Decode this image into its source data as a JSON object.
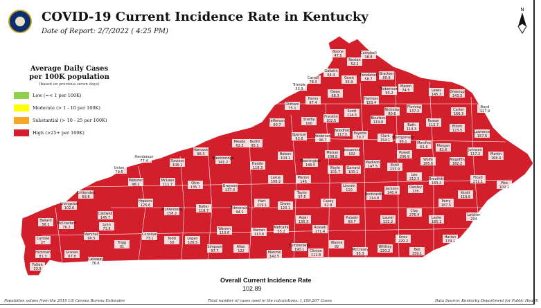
{
  "title": "COVID-19 Current Incidence Rate in Kentucky",
  "report_date": "Date of Report: 2/7/2022  ( 4:25 PM)",
  "legend": {
    "title_line1": "Average Daily Cases",
    "title_line2": "per 100K population",
    "note": "(based on previous seven days)",
    "items": [
      {
        "label": "Low (=< 1 per 100K)",
        "color": "#8fd14f"
      },
      {
        "label": "Moderate (> 1 - 10 per 100K)",
        "color": "#ffff00"
      },
      {
        "label": "Substantial (> 10 - 25 per 100K)",
        "color": "#f5a623"
      },
      {
        "label": "High (>25+ per 100K)",
        "color": "#d21f2b"
      }
    ]
  },
  "map_fill_color": "#d21f2b",
  "overall": {
    "label": "Overall Current Incidence Rate",
    "value": "102.89"
  },
  "footer": {
    "left": "Population values from the 2019 US Census Bureau Estimates",
    "center": "Total number of cases used in the calculations: 1,199,267 Cases",
    "right": "Data Source: Kentucky Department for Public Health"
  },
  "counties": [
    {
      "name": "Boone",
      "value": "47.5"
    },
    {
      "name": "Kenton",
      "value": "52.2"
    },
    {
      "name": "Campbell",
      "value": "38.8"
    },
    {
      "name": "Gallatin",
      "value": "64.4"
    },
    {
      "name": "Carroll",
      "value": "78.3"
    },
    {
      "name": "Trimble",
      "value": "53.9"
    },
    {
      "name": "Grant",
      "value": "35.9"
    },
    {
      "name": "Pendleton",
      "value": "58.7"
    },
    {
      "name": "Bracken",
      "value": "80.9"
    },
    {
      "name": "Robertson",
      "value": "95.2"
    },
    {
      "name": "Mason",
      "value": "74.5"
    },
    {
      "name": "Lewis",
      "value": "145.3"
    },
    {
      "name": "Greenup",
      "value": "143.3"
    },
    {
      "name": "Boyd",
      "value": "117.9"
    },
    {
      "name": "Oldham",
      "value": "75.1"
    },
    {
      "name": "Henry",
      "value": "97.4"
    },
    {
      "name": "Owen",
      "value": "68.3"
    },
    {
      "name": "Harrison",
      "value": "153.4"
    },
    {
      "name": "Fleming",
      "value": "137.2"
    },
    {
      "name": "Rowan",
      "value": "112.7"
    },
    {
      "name": "Carter",
      "value": "166.3"
    },
    {
      "name": "Elliott",
      "value": "123.5"
    },
    {
      "name": "Lawrence",
      "value": "157.6"
    },
    {
      "name": "Nicholas",
      "value": "80.6"
    },
    {
      "name": "Scott",
      "value": "114.5"
    },
    {
      "name": "Franklin",
      "value": "102.5"
    },
    {
      "name": "Shelby",
      "value": "100"
    },
    {
      "name": "Bourbon",
      "value": "119.8"
    },
    {
      "name": "Bath",
      "value": "114.3"
    },
    {
      "name": "Menifee",
      "value": "61.6"
    },
    {
      "name": "Morgan",
      "value": "81.6"
    },
    {
      "name": "Johnson",
      "value": "117.2"
    },
    {
      "name": "Martin",
      "value": "168.4"
    },
    {
      "name": "Jefferson",
      "value": "90.7"
    },
    {
      "name": "Spencer",
      "value": "93.8"
    },
    {
      "name": "Anderson",
      "value": "96.7"
    },
    {
      "name": "Woodford",
      "value": "117.5"
    },
    {
      "name": "Fayette",
      "value": "70.7"
    },
    {
      "name": "Clark",
      "value": "154.1"
    },
    {
      "name": "Montgomery",
      "value": "96.1"
    },
    {
      "name": "Powell",
      "value": "206.9"
    },
    {
      "name": "Wolfe",
      "value": "185.6"
    },
    {
      "name": "Magoffin",
      "value": "182.2"
    },
    {
      "name": "Floyd",
      "value": "211.1"
    },
    {
      "name": "Pike",
      "value": "102.1"
    },
    {
      "name": "Bullitt",
      "value": "95.1"
    },
    {
      "name": "Nelson",
      "value": "104.1"
    },
    {
      "name": "Washington",
      "value": "146.5"
    },
    {
      "name": "Mercer",
      "value": "108.8"
    },
    {
      "name": "Jessamine",
      "value": "102"
    },
    {
      "name": "Madison",
      "value": "147.5"
    },
    {
      "name": "Estill",
      "value": "233.9"
    },
    {
      "name": "Lee",
      "value": "212.3"
    },
    {
      "name": "Breathitt",
      "value": "183.2"
    },
    {
      "name": "Knott",
      "value": "119.6"
    },
    {
      "name": "Letcher",
      "value": "234"
    },
    {
      "name": "Meade",
      "value": "62.5"
    },
    {
      "name": "Hardin",
      "value": "118.3"
    },
    {
      "name": "Larue",
      "value": "108.2"
    },
    {
      "name": "Marion",
      "value": "146"
    },
    {
      "name": "Boyle",
      "value": "101.7"
    },
    {
      "name": "Garrard",
      "value": "100.1"
    },
    {
      "name": "Jackson",
      "value": "140.4"
    },
    {
      "name": "Owsley",
      "value": "235"
    },
    {
      "name": "Perry",
      "value": "187.5"
    },
    {
      "name": "Leslie",
      "value": "185.1"
    },
    {
      "name": "Harlan",
      "value": "179.1"
    },
    {
      "name": "Hancock",
      "value": "96.3"
    },
    {
      "name": "Breckinridge",
      "value": "141.2"
    },
    {
      "name": "Daviess",
      "value": "106.1"
    },
    {
      "name": "Henderson",
      "value": "77.4"
    },
    {
      "name": "Union",
      "value": "79.5"
    },
    {
      "name": "Webster",
      "value": "98.2"
    },
    {
      "name": "McLean",
      "value": "111.7"
    },
    {
      "name": "Ohio",
      "value": "135.7"
    },
    {
      "name": "Grayson",
      "value": "137.3"
    },
    {
      "name": "Hart",
      "value": "219.1"
    },
    {
      "name": "Green",
      "value": "120.1"
    },
    {
      "name": "Taylor",
      "value": "97.6"
    },
    {
      "name": "Casey",
      "value": "62.8"
    },
    {
      "name": "Lincoln",
      "value": "110"
    },
    {
      "name": "Rockcastle",
      "value": "214.8"
    },
    {
      "name": "Clay",
      "value": "276.4"
    },
    {
      "name": "Laurel",
      "value": "122.2"
    },
    {
      "name": "Knox",
      "value": "220.2"
    },
    {
      "name": "Bell",
      "value": "159.1"
    },
    {
      "name": "Whitley",
      "value": "220.2"
    },
    {
      "name": "Crittenden",
      "value": "69.8"
    },
    {
      "name": "Livingston",
      "value": "102.6"
    },
    {
      "name": "Caldwell",
      "value": "145.7"
    },
    {
      "name": "Hopkins",
      "value": "125.6"
    },
    {
      "name": "Muhlenberg",
      "value": "158.2"
    },
    {
      "name": "Butler",
      "value": "118.7"
    },
    {
      "name": "Edmonson",
      "value": "94.1"
    },
    {
      "name": "Warren",
      "value": "110.6"
    },
    {
      "name": "Barren",
      "value": "113.6"
    },
    {
      "name": "Metcalfe",
      "value": "55.2"
    },
    {
      "name": "Adair",
      "value": "135.3"
    },
    {
      "name": "Russell",
      "value": "171.4"
    },
    {
      "name": "Pulaski",
      "value": "69.7"
    },
    {
      "name": "McCreary",
      "value": "95.3"
    },
    {
      "name": "Wayne",
      "value": "92"
    },
    {
      "name": "Clinton",
      "value": "111.8"
    },
    {
      "name": "Cumberland",
      "value": "190.1"
    },
    {
      "name": "Monroe",
      "value": "142.5"
    },
    {
      "name": "Allen",
      "value": "122"
    },
    {
      "name": "Simpson",
      "value": "97.7"
    },
    {
      "name": "Logan",
      "value": "126.5"
    },
    {
      "name": "Todd",
      "value": "50"
    },
    {
      "name": "Christian",
      "value": "73.1"
    },
    {
      "name": "Trigg",
      "value": "91"
    },
    {
      "name": "Lyon",
      "value": "71.8"
    },
    {
      "name": "Marshall",
      "value": "90.5"
    },
    {
      "name": "Calloway",
      "value": "76.6"
    },
    {
      "name": "Graves",
      "value": "67.8"
    },
    {
      "name": "McCracken",
      "value": "76.2"
    },
    {
      "name": "Ballard",
      "value": "56.1"
    },
    {
      "name": "Carlisle",
      "value": "27"
    },
    {
      "name": "Hickman",
      "value": "81.3"
    },
    {
      "name": "Fulton",
      "value": "33.9"
    }
  ]
}
